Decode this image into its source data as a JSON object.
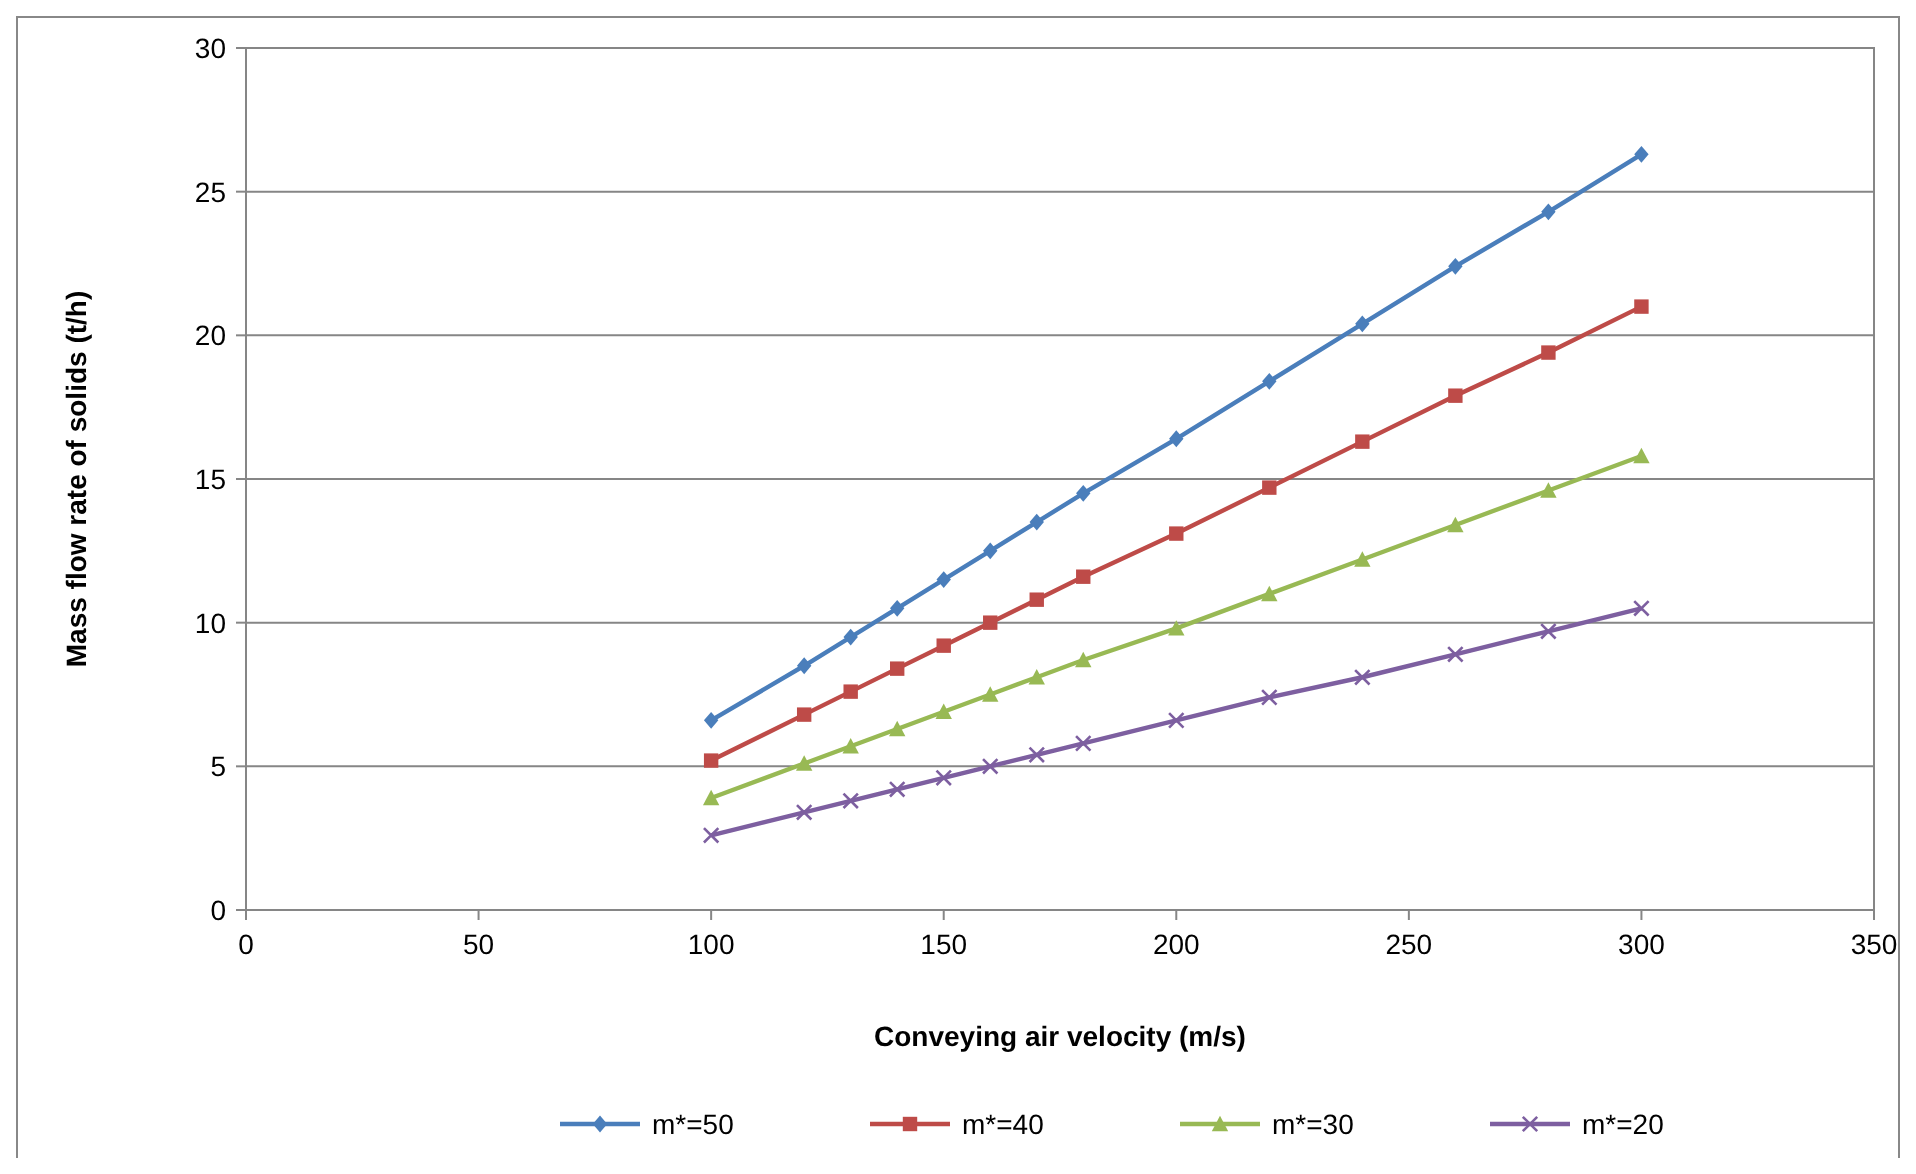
{
  "chart_data": {
    "type": "line",
    "xlabel": "Conveying air velocity (m/s)",
    "ylabel": "Mass flow rate of solids (t/h)",
    "x": [
      100,
      120,
      130,
      140,
      150,
      160,
      170,
      180,
      200,
      220,
      240,
      260,
      280,
      300
    ],
    "xlim": [
      0,
      350
    ],
    "xticks": [
      0,
      50,
      100,
      150,
      200,
      250,
      300,
      350
    ],
    "ylim": [
      0,
      30
    ],
    "yticks": [
      0,
      5,
      10,
      15,
      20,
      25,
      30
    ],
    "grid": "y",
    "legend": "bottom",
    "line_style": "solid",
    "series": [
      {
        "name": "m*=50",
        "color": "#4a7ebb",
        "marker": "diamond",
        "values": [
          6.6,
          8.5,
          9.5,
          10.5,
          11.5,
          12.5,
          13.5,
          14.5,
          16.4,
          18.4,
          20.4,
          22.4,
          24.3,
          26.3
        ]
      },
      {
        "name": "m*=40",
        "color": "#be4b48",
        "marker": "square",
        "values": [
          5.2,
          6.8,
          7.6,
          8.4,
          9.2,
          10.0,
          10.8,
          11.6,
          13.1,
          14.7,
          16.3,
          17.9,
          19.4,
          21.0
        ]
      },
      {
        "name": "m*=30",
        "color": "#98b954",
        "marker": "triangle",
        "values": [
          3.9,
          5.1,
          5.7,
          6.3,
          6.9,
          7.5,
          8.1,
          8.7,
          9.8,
          11.0,
          12.2,
          13.4,
          14.6,
          15.8
        ]
      },
      {
        "name": "m*=20",
        "color": "#7d5fa0",
        "marker": "cross",
        "values": [
          2.6,
          3.4,
          3.8,
          4.2,
          4.6,
          5.0,
          5.4,
          5.8,
          6.6,
          7.4,
          8.1,
          8.9,
          9.7,
          10.5
        ]
      }
    ]
  }
}
